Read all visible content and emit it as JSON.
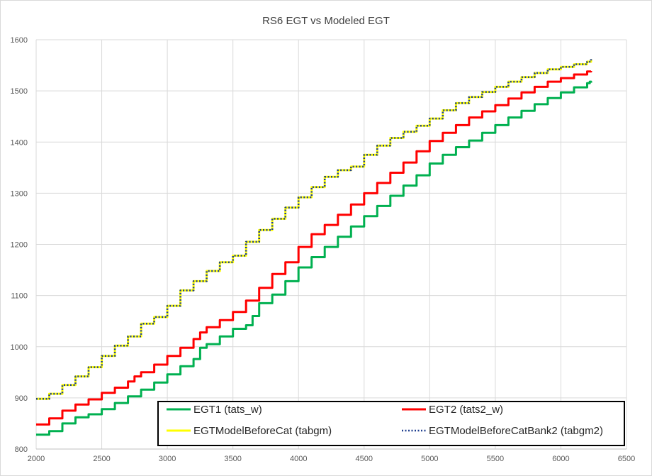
{
  "chart_data": {
    "type": "line",
    "title": "RS6 EGT vs Modeled EGT",
    "xlabel": "",
    "ylabel": "",
    "xlim": [
      2000,
      6500
    ],
    "ylim": [
      800,
      1600
    ],
    "xticks": [
      2000,
      2500,
      3000,
      3500,
      4000,
      4500,
      5000,
      5500,
      6000,
      6500
    ],
    "yticks": [
      800,
      900,
      1000,
      1100,
      1200,
      1300,
      1400,
      1500,
      1600
    ],
    "grid": true,
    "legend_position": "bottom-right, inside plot",
    "series": [
      {
        "name": "EGT1 (tats_w)",
        "color": "#00b050",
        "style": "solid",
        "points": [
          [
            2000,
            828
          ],
          [
            2100,
            835
          ],
          [
            2200,
            850
          ],
          [
            2300,
            862
          ],
          [
            2400,
            868
          ],
          [
            2500,
            878
          ],
          [
            2600,
            890
          ],
          [
            2700,
            903
          ],
          [
            2800,
            916
          ],
          [
            2900,
            930
          ],
          [
            3000,
            946
          ],
          [
            3100,
            962
          ],
          [
            3200,
            976
          ],
          [
            3250,
            998
          ],
          [
            3300,
            1005
          ],
          [
            3400,
            1020
          ],
          [
            3500,
            1035
          ],
          [
            3600,
            1042
          ],
          [
            3650,
            1060
          ],
          [
            3700,
            1085
          ],
          [
            3800,
            1102
          ],
          [
            3900,
            1128
          ],
          [
            4000,
            1155
          ],
          [
            4100,
            1175
          ],
          [
            4200,
            1195
          ],
          [
            4300,
            1215
          ],
          [
            4400,
            1235
          ],
          [
            4500,
            1255
          ],
          [
            4600,
            1275
          ],
          [
            4700,
            1295
          ],
          [
            4800,
            1315
          ],
          [
            4900,
            1335
          ],
          [
            5000,
            1358
          ],
          [
            5100,
            1375
          ],
          [
            5200,
            1390
          ],
          [
            5300,
            1403
          ],
          [
            5400,
            1418
          ],
          [
            5500,
            1433
          ],
          [
            5600,
            1448
          ],
          [
            5700,
            1461
          ],
          [
            5800,
            1474
          ],
          [
            5900,
            1486
          ],
          [
            6000,
            1497
          ],
          [
            6100,
            1507
          ],
          [
            6200,
            1515
          ],
          [
            6220,
            1518
          ],
          [
            6230,
            1516
          ]
        ]
      },
      {
        "name": "EGT2 (tats2_w)",
        "color": "#ff0000",
        "style": "solid",
        "points": [
          [
            2000,
            848
          ],
          [
            2100,
            860
          ],
          [
            2200,
            875
          ],
          [
            2300,
            887
          ],
          [
            2400,
            897
          ],
          [
            2500,
            910
          ],
          [
            2600,
            920
          ],
          [
            2700,
            932
          ],
          [
            2750,
            942
          ],
          [
            2800,
            950
          ],
          [
            2900,
            965
          ],
          [
            3000,
            982
          ],
          [
            3100,
            998
          ],
          [
            3200,
            1015
          ],
          [
            3250,
            1028
          ],
          [
            3300,
            1038
          ],
          [
            3400,
            1052
          ],
          [
            3500,
            1068
          ],
          [
            3600,
            1090
          ],
          [
            3700,
            1115
          ],
          [
            3800,
            1142
          ],
          [
            3900,
            1165
          ],
          [
            4000,
            1195
          ],
          [
            4100,
            1220
          ],
          [
            4200,
            1238
          ],
          [
            4300,
            1258
          ],
          [
            4400,
            1278
          ],
          [
            4500,
            1300
          ],
          [
            4600,
            1320
          ],
          [
            4700,
            1340
          ],
          [
            4800,
            1360
          ],
          [
            4900,
            1382
          ],
          [
            5000,
            1402
          ],
          [
            5100,
            1418
          ],
          [
            5200,
            1433
          ],
          [
            5300,
            1448
          ],
          [
            5400,
            1460
          ],
          [
            5500,
            1472
          ],
          [
            5600,
            1485
          ],
          [
            5700,
            1497
          ],
          [
            5800,
            1508
          ],
          [
            5900,
            1518
          ],
          [
            6000,
            1525
          ],
          [
            6100,
            1532
          ],
          [
            6200,
            1538
          ],
          [
            6230,
            1539
          ]
        ]
      },
      {
        "name": "EGTModelBeforeCat (tabgm)",
        "color": "#ffff00",
        "style": "solid",
        "points": [
          [
            2000,
            898
          ],
          [
            2100,
            908
          ],
          [
            2200,
            925
          ],
          [
            2300,
            942
          ],
          [
            2400,
            960
          ],
          [
            2500,
            982
          ],
          [
            2600,
            1002
          ],
          [
            2700,
            1020
          ],
          [
            2800,
            1045
          ],
          [
            2900,
            1058
          ],
          [
            3000,
            1080
          ],
          [
            3100,
            1110
          ],
          [
            3200,
            1128
          ],
          [
            3300,
            1148
          ],
          [
            3400,
            1165
          ],
          [
            3500,
            1178
          ],
          [
            3600,
            1205
          ],
          [
            3700,
            1228
          ],
          [
            3800,
            1250
          ],
          [
            3900,
            1272
          ],
          [
            4000,
            1292
          ],
          [
            4100,
            1312
          ],
          [
            4200,
            1332
          ],
          [
            4300,
            1345
          ],
          [
            4400,
            1352
          ],
          [
            4500,
            1375
          ],
          [
            4600,
            1393
          ],
          [
            4700,
            1408
          ],
          [
            4800,
            1420
          ],
          [
            4900,
            1432
          ],
          [
            5000,
            1446
          ],
          [
            5100,
            1462
          ],
          [
            5200,
            1476
          ],
          [
            5300,
            1488
          ],
          [
            5400,
            1498
          ],
          [
            5500,
            1508
          ],
          [
            5600,
            1518
          ],
          [
            5700,
            1527
          ],
          [
            5800,
            1535
          ],
          [
            5900,
            1542
          ],
          [
            6000,
            1547
          ],
          [
            6100,
            1552
          ],
          [
            6200,
            1557
          ],
          [
            6230,
            1562
          ]
        ]
      },
      {
        "name": "EGTModelBeforeCatBank2 (tabgm2)",
        "color": "#1f3f8f",
        "style": "dotted",
        "points": [
          [
            2000,
            898
          ],
          [
            2100,
            908
          ],
          [
            2200,
            925
          ],
          [
            2300,
            942
          ],
          [
            2400,
            960
          ],
          [
            2500,
            982
          ],
          [
            2600,
            1002
          ],
          [
            2700,
            1020
          ],
          [
            2800,
            1045
          ],
          [
            2900,
            1058
          ],
          [
            3000,
            1080
          ],
          [
            3100,
            1110
          ],
          [
            3200,
            1128
          ],
          [
            3300,
            1148
          ],
          [
            3400,
            1165
          ],
          [
            3500,
            1178
          ],
          [
            3600,
            1205
          ],
          [
            3700,
            1228
          ],
          [
            3800,
            1250
          ],
          [
            3900,
            1272
          ],
          [
            4000,
            1292
          ],
          [
            4100,
            1312
          ],
          [
            4200,
            1332
          ],
          [
            4300,
            1345
          ],
          [
            4400,
            1352
          ],
          [
            4500,
            1375
          ],
          [
            4600,
            1393
          ],
          [
            4700,
            1408
          ],
          [
            4800,
            1420
          ],
          [
            4900,
            1432
          ],
          [
            5000,
            1446
          ],
          [
            5100,
            1462
          ],
          [
            5200,
            1476
          ],
          [
            5300,
            1488
          ],
          [
            5400,
            1498
          ],
          [
            5500,
            1508
          ],
          [
            5600,
            1518
          ],
          [
            5700,
            1527
          ],
          [
            5800,
            1535
          ],
          [
            5900,
            1542
          ],
          [
            6000,
            1547
          ],
          [
            6100,
            1552
          ],
          [
            6200,
            1557
          ],
          [
            6230,
            1562
          ]
        ]
      }
    ]
  }
}
